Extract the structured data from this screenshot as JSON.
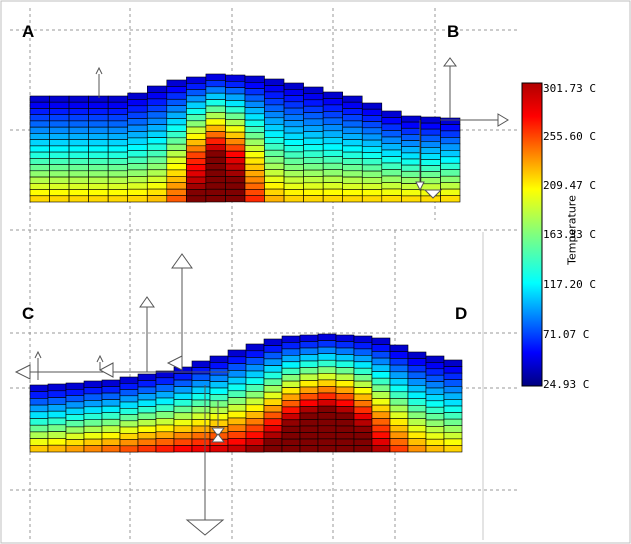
{
  "labels": {
    "a": "A",
    "b": "B",
    "c": "C",
    "d": "D"
  },
  "colorbar": {
    "title": "Temperature",
    "ticks": [
      "301.73 C",
      "255.60 C",
      "209.47 C",
      "163.33 C",
      "117.20 C",
      "71.07 C",
      "24.93 C"
    ],
    "min": 24.93,
    "max": 301.73
  },
  "colors": {
    "colormap": [
      "#00007f",
      "#0000ff",
      "#007fff",
      "#00ffff",
      "#7fff7f",
      "#ffff00",
      "#ff7f00",
      "#ff0000",
      "#7f0000"
    ],
    "grid": "#000000",
    "guides": "#9a9a9a"
  }
}
